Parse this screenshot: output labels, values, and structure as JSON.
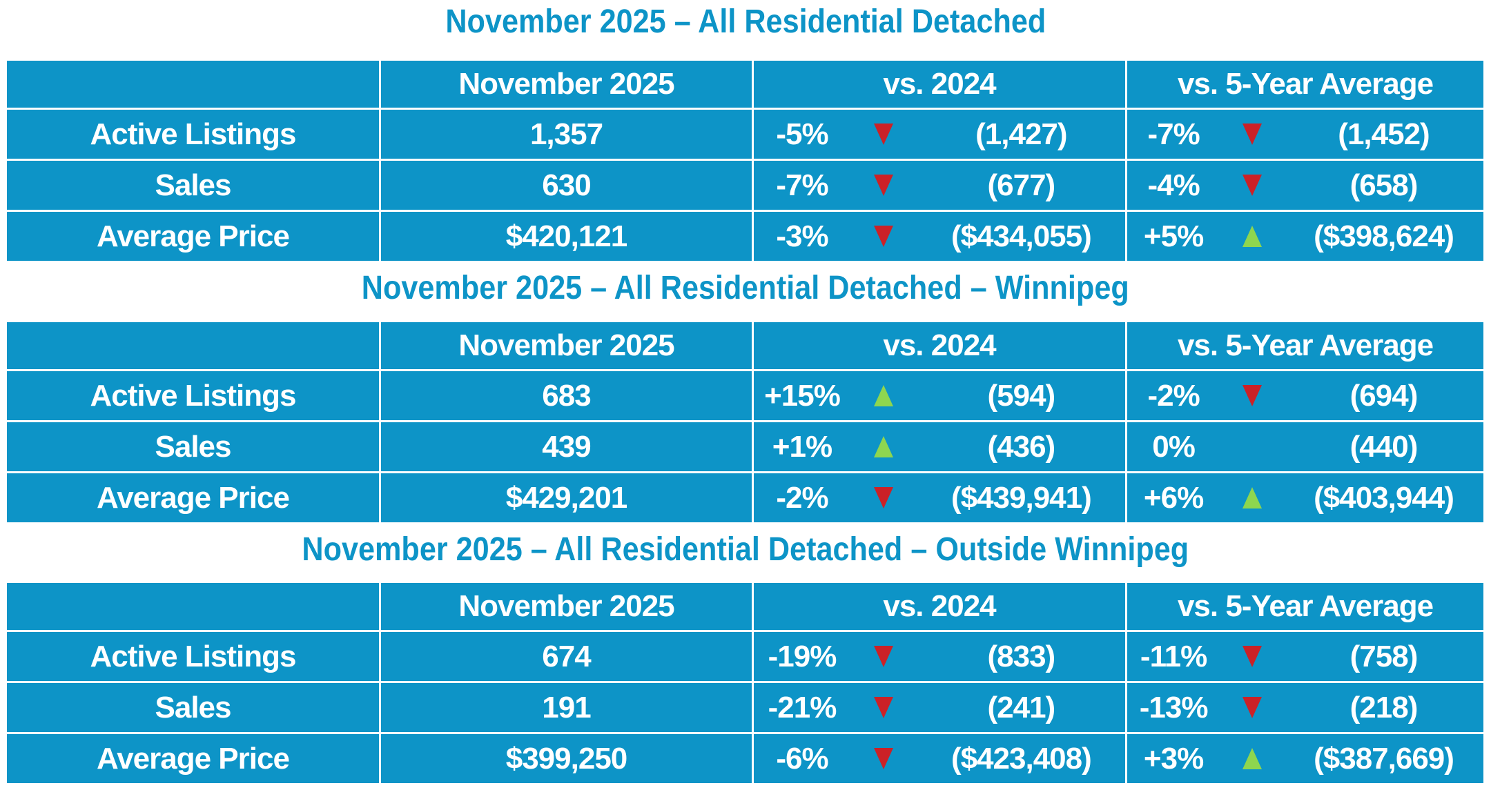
{
  "colors": {
    "table_blue": "#0d94c7",
    "title_blue": "#0d94c7",
    "down_red": "#cb2127",
    "up_green": "#8ed64f"
  },
  "tables": [
    {
      "title": "November 2025 – All Residential Detached",
      "columns": [
        "",
        "November 2025",
        "vs. 2024",
        "vs. 5-Year Average"
      ],
      "rows": [
        {
          "label": "Active Listings",
          "current": "1,357",
          "vs2024": {
            "pct": "-5%",
            "dir": "down",
            "value": "(1,427)"
          },
          "vs5yr": {
            "pct": "-7%",
            "dir": "down",
            "value": "(1,452)"
          }
        },
        {
          "label": "Sales",
          "current": "630",
          "vs2024": {
            "pct": "-7%",
            "dir": "down",
            "value": "(677)"
          },
          "vs5yr": {
            "pct": "-4%",
            "dir": "down",
            "value": "(658)"
          }
        },
        {
          "label": "Average Price",
          "current": "$420,121",
          "vs2024": {
            "pct": "-3%",
            "dir": "down",
            "value": "($434,055)"
          },
          "vs5yr": {
            "pct": "+5%",
            "dir": "up",
            "value": "($398,624)"
          }
        }
      ]
    },
    {
      "title": "November 2025 – All Residential Detached – Winnipeg",
      "columns": [
        "",
        "November 2025",
        "vs. 2024",
        "vs. 5-Year Average"
      ],
      "rows": [
        {
          "label": "Active Listings",
          "current": "683",
          "vs2024": {
            "pct": "+15%",
            "dir": "up",
            "value": "(594)"
          },
          "vs5yr": {
            "pct": "-2%",
            "dir": "down",
            "value": "(694)"
          }
        },
        {
          "label": "Sales",
          "current": "439",
          "vs2024": {
            "pct": "+1%",
            "dir": "up",
            "value": "(436)"
          },
          "vs5yr": {
            "pct": "0%",
            "dir": "none",
            "value": "(440)"
          }
        },
        {
          "label": "Average Price",
          "current": "$429,201",
          "vs2024": {
            "pct": "-2%",
            "dir": "down",
            "value": "($439,941)"
          },
          "vs5yr": {
            "pct": "+6%",
            "dir": "up",
            "value": "($403,944)"
          }
        }
      ]
    },
    {
      "title": "November 2025 – All Residential Detached – Outside Winnipeg",
      "columns": [
        "",
        "November 2025",
        "vs. 2024",
        "vs. 5-Year Average"
      ],
      "rows": [
        {
          "label": "Active Listings",
          "current": "674",
          "vs2024": {
            "pct": "-19%",
            "dir": "down",
            "value": "(833)"
          },
          "vs5yr": {
            "pct": "-11%",
            "dir": "down",
            "value": "(758)"
          }
        },
        {
          "label": "Sales",
          "current": "191",
          "vs2024": {
            "pct": "-21%",
            "dir": "down",
            "value": "(241)"
          },
          "vs5yr": {
            "pct": "-13%",
            "dir": "down",
            "value": "(218)"
          }
        },
        {
          "label": "Average Price",
          "current": "$399,250",
          "vs2024": {
            "pct": "-6%",
            "dir": "down",
            "value": "($423,408)"
          },
          "vs5yr": {
            "pct": "+3%",
            "dir": "up",
            "value": "($387,669)"
          }
        }
      ]
    }
  ]
}
